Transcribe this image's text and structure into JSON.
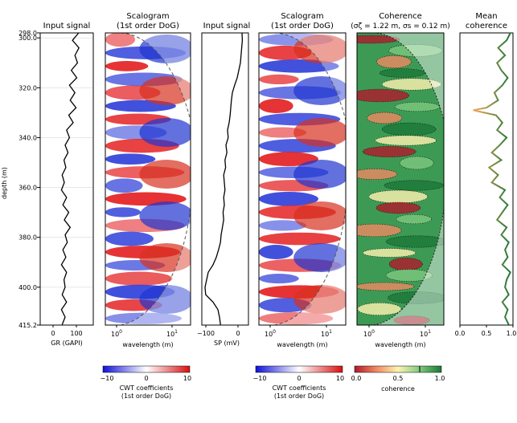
{
  "figure": {
    "depth_label": "depth (m)",
    "depth_ticks": [
      "298.0",
      "300.0",
      "320.0",
      "340.0",
      "360.0",
      "380.0",
      "400.0",
      "415.2"
    ]
  },
  "panels": {
    "gr": {
      "title": "Input signal",
      "xlabel": "GR (GAPI)",
      "xticks": [
        "0",
        "100"
      ]
    },
    "scalogram1": {
      "title": "Scalogram",
      "subtitle": "(1st order DoG)",
      "xlabel": "wavelength (m)"
    },
    "sp": {
      "title": "Input signal",
      "xlabel": "SP (mV)",
      "xticks": [
        "−100",
        "0"
      ]
    },
    "scalogram2": {
      "title": "Scalogram",
      "subtitle": "(1st order DoG)",
      "xlabel": "wavelength (m)"
    },
    "coherence": {
      "title": "Coherence",
      "subtitle": "(σζ = 1.22 m, σs = 0.12 m)",
      "xlabel": "wavelength (m)"
    },
    "mean": {
      "title": "Mean",
      "subtitle": "coherence",
      "xticks": [
        "0.0",
        "0.5",
        "1.0"
      ]
    }
  },
  "log_ticks": {
    "a": "10",
    "a_exp": "0",
    "b": "10",
    "b_exp": "1"
  },
  "colorbars": {
    "cwt1": {
      "ticks": [
        "−10",
        "0",
        "10"
      ],
      "label1": "CWT coefficients",
      "label2": "(1st order DoG)"
    },
    "cwt2": {
      "ticks": [
        "−10",
        "0",
        "10"
      ],
      "label1": "CWT coefficients",
      "label2": "(1st order DoG)"
    },
    "coh": {
      "ticks": [
        "0.0",
        "0.5",
        "1.0"
      ],
      "label1": "coherence"
    }
  },
  "chart_data": {
    "type": "line",
    "y_axis": {
      "label": "depth (m)",
      "range": [
        298.0,
        415.2
      ],
      "inverted": true
    },
    "panels": [
      {
        "name": "GR",
        "xlabel": "GR (GAPI)",
        "xlim": [
          -10,
          135
        ],
        "depth": [
          298,
          301,
          304,
          307,
          310,
          313,
          316,
          319,
          322,
          325,
          328,
          331,
          334,
          337,
          340,
          343,
          346,
          349,
          352,
          355,
          358,
          361,
          364,
          367,
          370,
          373,
          376,
          379,
          382,
          385,
          388,
          391,
          394,
          397,
          400,
          403,
          406,
          409,
          412,
          415
        ],
        "values": [
          95,
          78,
          96,
          85,
          92,
          75,
          90,
          70,
          85,
          72,
          88,
          68,
          80,
          62,
          70,
          58,
          66,
          55,
          60,
          50,
          56,
          48,
          62,
          52,
          68,
          56,
          72,
          58,
          64,
          52,
          60,
          48,
          62,
          55,
          58,
          50,
          62,
          48,
          58,
          50
        ]
      },
      {
        "name": "SP",
        "xlabel": "SP (mV)",
        "xlim": [
          -130,
          15
        ],
        "depth": [
          298,
          301,
          304,
          307,
          310,
          313,
          316,
          319,
          322,
          325,
          328,
          331,
          334,
          337,
          340,
          343,
          346,
          349,
          352,
          355,
          358,
          361,
          364,
          367,
          370,
          373,
          376,
          379,
          382,
          385,
          388,
          391,
          394,
          397,
          400,
          403,
          406,
          409,
          412,
          415
        ],
        "values": [
          -5,
          -4,
          -6,
          -8,
          -10,
          -15,
          -20,
          -28,
          -35,
          -38,
          -40,
          -42,
          -45,
          -50,
          -48,
          -55,
          -52,
          -58,
          -56,
          -62,
          -60,
          -58,
          -62,
          -60,
          -64,
          -62,
          -66,
          -70,
          -72,
          -78,
          -85,
          -95,
          -110,
          -115,
          -120,
          -118,
          -95,
          -80,
          -75,
          -72
        ]
      },
      {
        "name": "Mean coherence",
        "xlim": [
          0.0,
          1.0
        ],
        "depth": [
          298,
          301,
          304,
          307,
          310,
          313,
          316,
          319,
          322,
          325,
          328,
          329,
          331,
          334,
          337,
          340,
          343,
          346,
          349,
          352,
          355,
          358,
          361,
          364,
          367,
          370,
          373,
          376,
          379,
          382,
          385,
          388,
          391,
          394,
          397,
          400,
          403,
          406,
          409,
          412,
          415
        ],
        "values": [
          0.95,
          0.88,
          0.72,
          0.85,
          0.7,
          0.78,
          0.9,
          0.8,
          0.65,
          0.72,
          0.5,
          0.25,
          0.68,
          0.8,
          0.7,
          0.88,
          0.75,
          0.6,
          0.78,
          0.55,
          0.72,
          0.6,
          0.85,
          0.75,
          0.9,
          0.8,
          0.7,
          0.88,
          0.78,
          0.92,
          0.85,
          0.9,
          0.8,
          0.95,
          0.88,
          0.85,
          0.92,
          0.8,
          0.9,
          0.85,
          0.92
        ]
      }
    ],
    "scalograms": [
      {
        "title": "Scalogram (1st order DoG)",
        "xlabel": "wavelength (m)",
        "x_scale": "log",
        "colorbar_range": [
          -10,
          10
        ]
      },
      {
        "title": "Scalogram (1st order DoG)",
        "xlabel": "wavelength (m)",
        "x_scale": "log",
        "colorbar_range": [
          -10,
          10
        ]
      },
      {
        "title": "Coherence",
        "xlabel": "wavelength (m)",
        "x_scale": "log",
        "colorbar_range": [
          0.0,
          1.0
        ]
      }
    ]
  }
}
